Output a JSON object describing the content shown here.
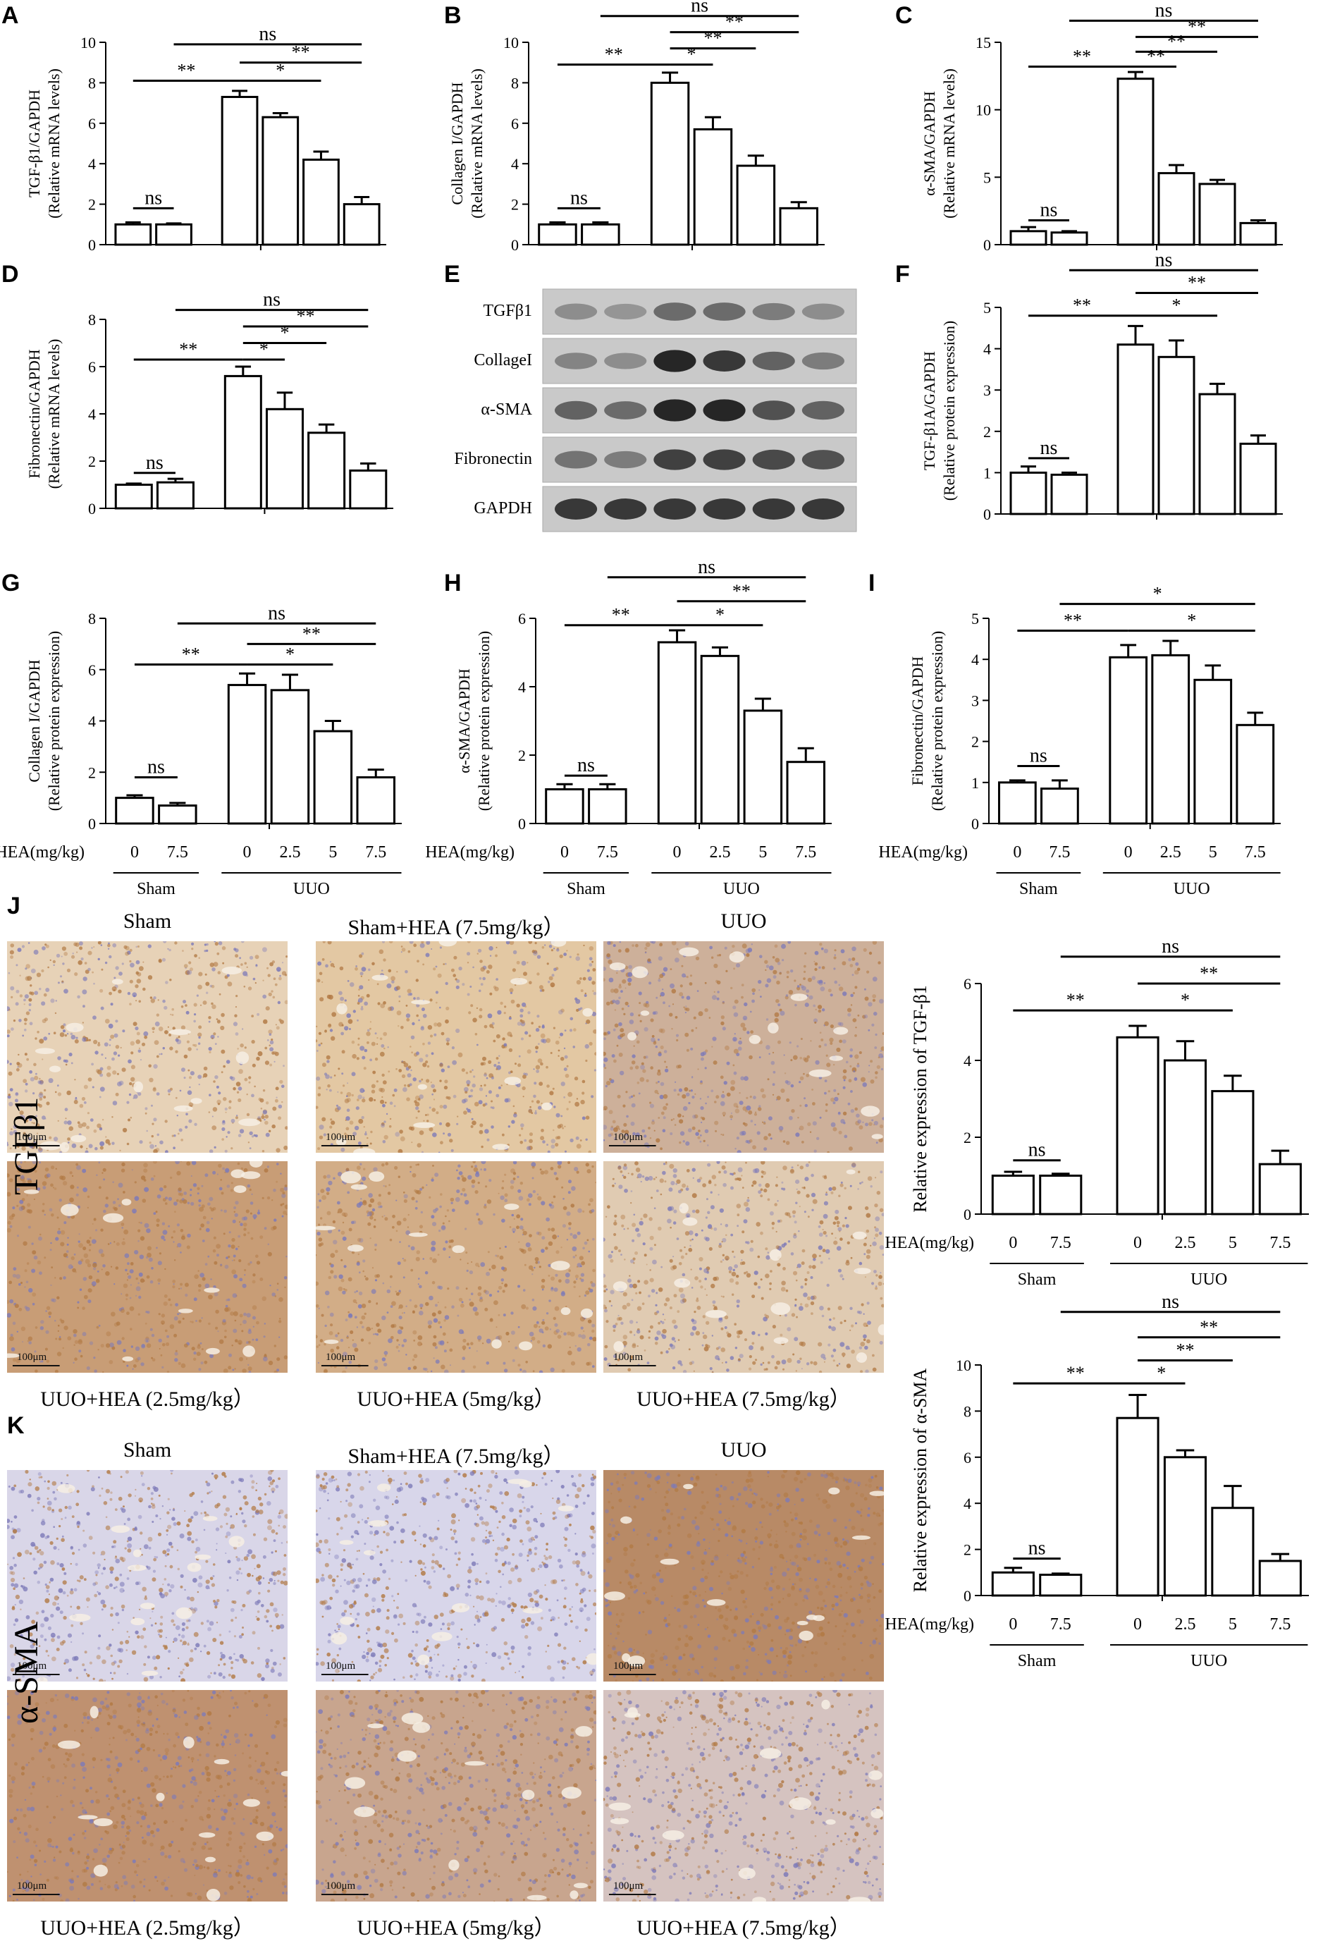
{
  "figure": {
    "panel_letters": [
      "A",
      "B",
      "C",
      "D",
      "E",
      "F",
      "G",
      "H",
      "I",
      "J",
      "K"
    ],
    "x_axis_block": {
      "hea_label": "HEA(mg/kg)",
      "doses": [
        "0",
        "7.5",
        "0",
        "2.5",
        "5",
        "7.5"
      ],
      "group_sham": "Sham",
      "group_uuo": "UUO"
    },
    "western_blot": {
      "bands": [
        "TGFβ1",
        "CollageI",
        "α-SMA",
        "Fibronectin",
        "GAPDH"
      ]
    },
    "histology_J": {
      "side_label": "TGFβ1",
      "top_titles": [
        "Sham",
        "Sham+HEA (7.5mg/kg）",
        "UUO"
      ],
      "bottom_titles": [
        "UUO+HEA (2.5mg/kg）",
        "UUO+HEA (5mg/kg）",
        "UUO+HEA (7.5mg/kg）"
      ],
      "scale_label": "100μm"
    },
    "histology_K": {
      "side_label": "α-SMA",
      "top_titles": [
        "Sham",
        "Sham+HEA (7.5mg/kg）",
        "UUO"
      ],
      "bottom_titles": [
        "UUO+HEA (2.5mg/kg）",
        "UUO+HEA (5mg/kg）",
        "UUO+HEA (7.5mg/kg）"
      ],
      "scale_label": "100μm"
    },
    "colors": {
      "bar_fill": "#ffffff",
      "ink": "#000000",
      "stain_brown": "#b27a45",
      "stain_blue": "#7d7ab8"
    }
  },
  "chart_data": [
    {
      "id": "A",
      "type": "bar",
      "ylabel_main": "TGF-β1/GAPDH",
      "ylabel_sub": "(Relative mRNA levels)",
      "ylim": [
        0,
        10
      ],
      "ticks": [
        "0",
        "2",
        "4",
        "6",
        "8",
        "10"
      ],
      "values": [
        1.0,
        1.0,
        7.3,
        6.3,
        4.2,
        2.0
      ],
      "errors": [
        0.1,
        0.05,
        0.3,
        0.2,
        0.4,
        0.35
      ],
      "annotations": [
        {
          "text": "ns",
          "from": 0,
          "to": 1,
          "level": 1.8
        },
        {
          "text": "**",
          "from": 0,
          "to": 2,
          "level": 8.1
        },
        {
          "text": "*",
          "from": 2,
          "to": 4,
          "level": 8.1
        },
        {
          "text": "**",
          "from": 2,
          "to": 5,
          "level": 9.0
        },
        {
          "text": "ns",
          "from": 1,
          "to": 5,
          "level": 9.9
        }
      ]
    },
    {
      "id": "B",
      "type": "bar",
      "ylabel_main": "Collagen I/GAPDH",
      "ylabel_sub": "(Relative mRNA levels)",
      "ylim": [
        0,
        10
      ],
      "ticks": [
        "0",
        "2",
        "4",
        "6",
        "8",
        "10"
      ],
      "values": [
        1.0,
        1.0,
        8.0,
        5.7,
        3.9,
        1.8
      ],
      "errors": [
        0.1,
        0.1,
        0.5,
        0.6,
        0.5,
        0.3
      ],
      "annotations": [
        {
          "text": "ns",
          "from": 0,
          "to": 1,
          "level": 1.8
        },
        {
          "text": "**",
          "from": 0,
          "to": 2,
          "level": 8.9
        },
        {
          "text": "*",
          "from": 2,
          "to": 3,
          "level": 8.9
        },
        {
          "text": "**",
          "from": 2,
          "to": 4,
          "level": 9.7
        },
        {
          "text": "**",
          "from": 2,
          "to": 5,
          "level": 10.5
        },
        {
          "text": "ns",
          "from": 1,
          "to": 5,
          "level": 11.3
        }
      ]
    },
    {
      "id": "C",
      "type": "bar",
      "ylabel_main": "α-SMA/GAPDH",
      "ylabel_sub": "(Relative mRNA levels)",
      "ylim": [
        0,
        15
      ],
      "ticks": [
        "0",
        "5",
        "10",
        "15"
      ],
      "values": [
        1.0,
        0.9,
        12.3,
        5.3,
        4.5,
        1.6
      ],
      "errors": [
        0.3,
        0.1,
        0.5,
        0.6,
        0.3,
        0.2
      ],
      "annotations": [
        {
          "text": "ns",
          "from": 0,
          "to": 1,
          "level": 1.8
        },
        {
          "text": "**",
          "from": 0,
          "to": 2,
          "level": 13.2
        },
        {
          "text": "**",
          "from": 2,
          "to": 3,
          "level": 13.2
        },
        {
          "text": "**",
          "from": 2,
          "to": 4,
          "level": 14.3
        },
        {
          "text": "**",
          "from": 2,
          "to": 5,
          "level": 15.4
        },
        {
          "text": "ns",
          "from": 1,
          "to": 5,
          "level": 16.6
        }
      ]
    },
    {
      "id": "D",
      "type": "bar",
      "ylabel_main": "Fibronectin/GAPDH",
      "ylabel_sub": "(Relative mRNA levels)",
      "ylim": [
        0,
        8
      ],
      "ticks": [
        "0",
        "2",
        "4",
        "6",
        "8"
      ],
      "values": [
        1.0,
        1.1,
        5.6,
        4.2,
        3.2,
        1.6
      ],
      "errors": [
        0.05,
        0.15,
        0.4,
        0.7,
        0.35,
        0.3
      ],
      "annotations": [
        {
          "text": "ns",
          "from": 0,
          "to": 1,
          "level": 1.5
        },
        {
          "text": "**",
          "from": 0,
          "to": 2,
          "level": 6.3
        },
        {
          "text": "*",
          "from": 2,
          "to": 3,
          "level": 6.3
        },
        {
          "text": "*",
          "from": 2,
          "to": 4,
          "level": 7.0
        },
        {
          "text": "**",
          "from": 2,
          "to": 5,
          "level": 7.7
        },
        {
          "text": "ns",
          "from": 1,
          "to": 5,
          "level": 8.4
        }
      ]
    },
    {
      "id": "F",
      "type": "bar",
      "ylabel_main": "TGF-β1A/GAPDH",
      "ylabel_sub": "(Relative protein expression)",
      "ylim": [
        0,
        5
      ],
      "ticks": [
        "0",
        "1",
        "2",
        "3",
        "4",
        "5"
      ],
      "values": [
        1.0,
        0.95,
        4.1,
        3.8,
        2.9,
        1.7
      ],
      "errors": [
        0.15,
        0.05,
        0.45,
        0.4,
        0.25,
        0.2
      ],
      "annotations": [
        {
          "text": "ns",
          "from": 0,
          "to": 1,
          "level": 1.35
        },
        {
          "text": "**",
          "from": 0,
          "to": 2,
          "level": 4.8
        },
        {
          "text": "*",
          "from": 2,
          "to": 4,
          "level": 4.8
        },
        {
          "text": "**",
          "from": 2,
          "to": 5,
          "level": 5.35
        },
        {
          "text": "ns",
          "from": 1,
          "to": 5,
          "level": 5.9
        }
      ]
    },
    {
      "id": "G",
      "type": "bar",
      "ylabel_main": "Collagen I/GAPDH",
      "ylabel_sub": "(Relative protein expression)",
      "ylim": [
        0,
        8
      ],
      "ticks": [
        "0",
        "2",
        "4",
        "6",
        "8"
      ],
      "values": [
        1.0,
        0.7,
        5.4,
        5.2,
        3.6,
        1.8
      ],
      "errors": [
        0.1,
        0.1,
        0.45,
        0.6,
        0.4,
        0.3
      ],
      "annotations": [
        {
          "text": "ns",
          "from": 0,
          "to": 1,
          "level": 1.8
        },
        {
          "text": "**",
          "from": 0,
          "to": 2,
          "level": 6.2
        },
        {
          "text": "*",
          "from": 2,
          "to": 4,
          "level": 6.2
        },
        {
          "text": "**",
          "from": 2,
          "to": 5,
          "level": 7.0
        },
        {
          "text": "ns",
          "from": 1,
          "to": 5,
          "level": 7.8
        }
      ]
    },
    {
      "id": "H",
      "type": "bar",
      "ylabel_main": "α-SMA/GAPDH",
      "ylabel_sub": "(Relative protein expression)",
      "ylim": [
        0,
        6
      ],
      "ticks": [
        "0",
        "2",
        "4",
        "6"
      ],
      "values": [
        1.0,
        1.0,
        5.3,
        4.9,
        3.3,
        1.8
      ],
      "errors": [
        0.15,
        0.15,
        0.35,
        0.25,
        0.35,
        0.4
      ],
      "annotations": [
        {
          "text": "ns",
          "from": 0,
          "to": 1,
          "level": 1.4
        },
        {
          "text": "**",
          "from": 0,
          "to": 2,
          "level": 5.8
        },
        {
          "text": "*",
          "from": 2,
          "to": 4,
          "level": 5.8
        },
        {
          "text": "**",
          "from": 2,
          "to": 5,
          "level": 6.5
        },
        {
          "text": "ns",
          "from": 1,
          "to": 5,
          "level": 7.2
        }
      ]
    },
    {
      "id": "I",
      "type": "bar",
      "ylabel_main": "Fibronectin/GAPDH",
      "ylabel_sub": "(Relative protein expression)",
      "ylim": [
        0,
        5
      ],
      "ticks": [
        "0",
        "1",
        "2",
        "3",
        "4",
        "5"
      ],
      "values": [
        1.0,
        0.85,
        4.05,
        4.1,
        3.5,
        2.4
      ],
      "errors": [
        0.05,
        0.2,
        0.3,
        0.35,
        0.35,
        0.3
      ],
      "annotations": [
        {
          "text": "ns",
          "from": 0,
          "to": 1,
          "level": 1.4
        },
        {
          "text": "**",
          "from": 0,
          "to": 2,
          "level": 4.7
        },
        {
          "text": "*",
          "from": 2,
          "to": 5,
          "level": 4.7
        },
        {
          "text": "*",
          "from": 1,
          "to": 5,
          "level": 5.35
        }
      ]
    },
    {
      "id": "J",
      "type": "bar",
      "ylabel_main": "Relative expression of TGF-β1",
      "ylabel_sub": "",
      "ylim": [
        0,
        6
      ],
      "ticks": [
        "0",
        "2",
        "4",
        "6"
      ],
      "values": [
        1.0,
        1.0,
        4.6,
        4.0,
        3.2,
        1.3
      ],
      "errors": [
        0.1,
        0.05,
        0.3,
        0.5,
        0.4,
        0.35
      ],
      "annotations": [
        {
          "text": "ns",
          "from": 0,
          "to": 1,
          "level": 1.4
        },
        {
          "text": "**",
          "from": 0,
          "to": 2,
          "level": 5.3
        },
        {
          "text": "*",
          "from": 2,
          "to": 4,
          "level": 5.3
        },
        {
          "text": "**",
          "from": 2,
          "to": 5,
          "level": 6.0
        },
        {
          "text": "ns",
          "from": 1,
          "to": 5,
          "level": 6.7
        }
      ]
    },
    {
      "id": "K",
      "type": "bar",
      "ylabel_main": "Relative expression of α-SMA",
      "ylabel_sub": "",
      "ylim": [
        0,
        10
      ],
      "ticks": [
        "0",
        "2",
        "4",
        "6",
        "8",
        "10"
      ],
      "values": [
        1.0,
        0.9,
        7.7,
        6.0,
        3.8,
        1.5
      ],
      "errors": [
        0.2,
        0.05,
        1.0,
        0.3,
        0.95,
        0.3
      ],
      "annotations": [
        {
          "text": "ns",
          "from": 0,
          "to": 1,
          "level": 1.6
        },
        {
          "text": "**",
          "from": 0,
          "to": 2,
          "level": 9.2
        },
        {
          "text": "*",
          "from": 2,
          "to": 3,
          "level": 9.2
        },
        {
          "text": "**",
          "from": 2,
          "to": 4,
          "level": 10.2
        },
        {
          "text": "**",
          "from": 2,
          "to": 5,
          "level": 11.2
        },
        {
          "text": "ns",
          "from": 1,
          "to": 5,
          "level": 12.3
        }
      ]
    }
  ]
}
